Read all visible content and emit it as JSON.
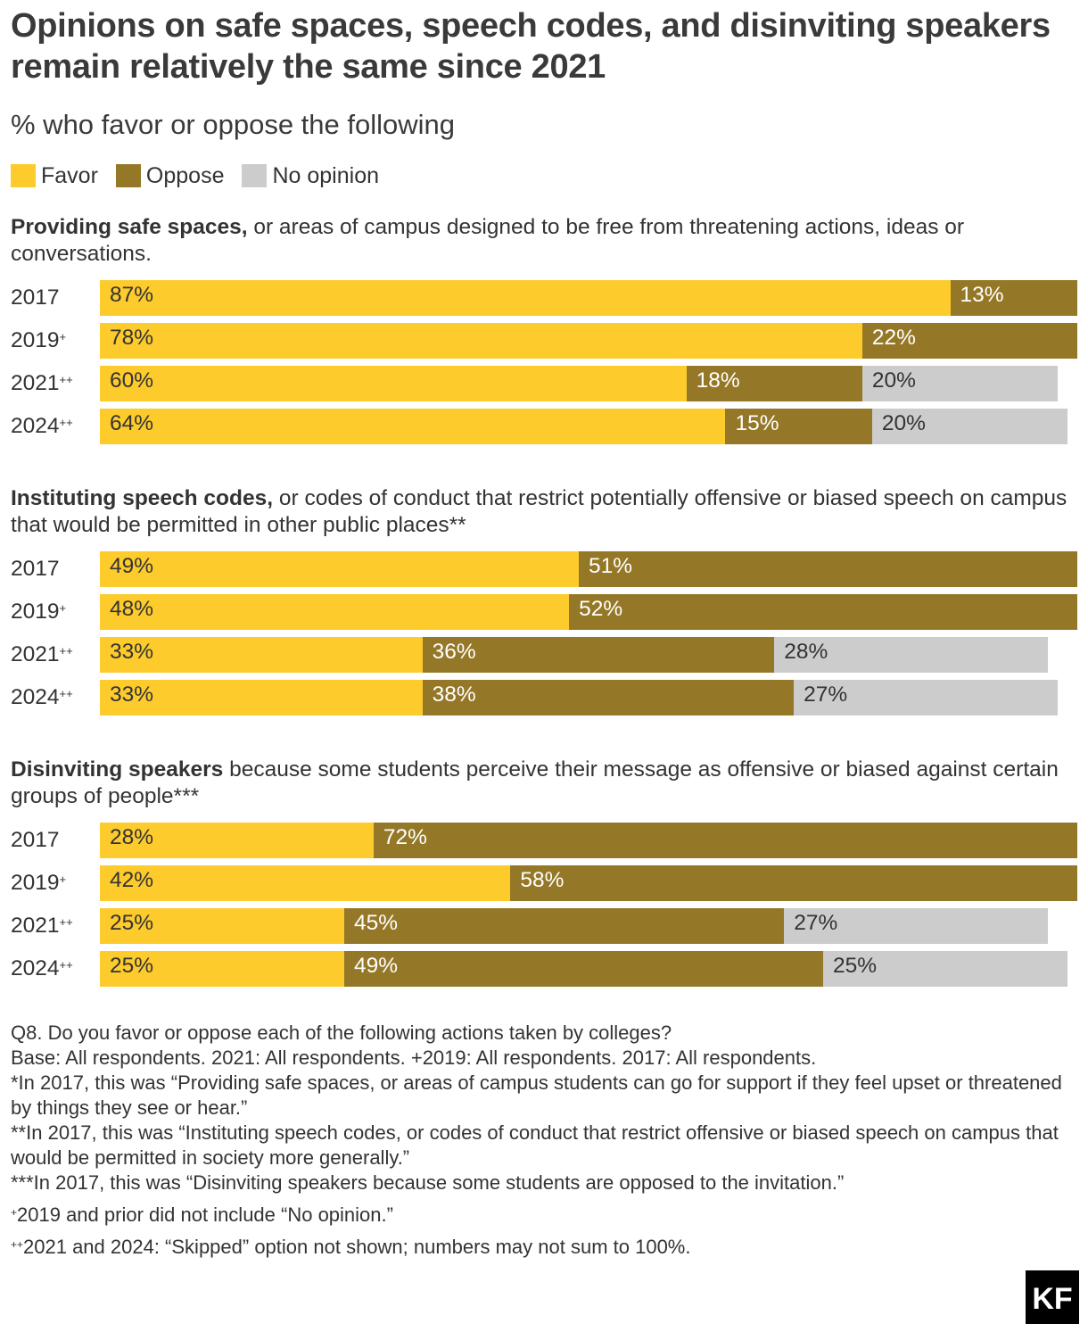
{
  "title": "Opinions on safe spaces, speech codes, and disinviting speakers remain relatively the same since 2021",
  "subtitle": "% who favor or oppose the following",
  "legend": [
    {
      "label": "Favor",
      "color": "#FDCB2C"
    },
    {
      "label": "Oppose",
      "color": "#957827"
    },
    {
      "label": "No opinion",
      "color": "#CCCCCC"
    }
  ],
  "chart_data": [
    {
      "type": "bar",
      "orientation": "horizontal",
      "stacked": true,
      "question_bold": "Providing safe spaces,",
      "question_rest": " or areas of campus designed to be free from threatening actions, ideas or conversations.",
      "categories": [
        "2017",
        "2019",
        "2021",
        "2024"
      ],
      "category_marks": [
        "",
        "+",
        "++",
        "++"
      ],
      "series": [
        {
          "name": "Favor",
          "values": [
            87,
            78,
            60,
            64
          ]
        },
        {
          "name": "Oppose",
          "values": [
            13,
            22,
            18,
            15
          ]
        },
        {
          "name": "No opinion",
          "values": [
            null,
            null,
            20,
            20
          ]
        }
      ],
      "xlim": [
        0,
        100
      ]
    },
    {
      "type": "bar",
      "orientation": "horizontal",
      "stacked": true,
      "question_bold": "Instituting speech codes,",
      "question_rest": " or codes of conduct that restrict potentially offensive or biased speech on campus that would be permitted in other public places**",
      "categories": [
        "2017",
        "2019",
        "2021",
        "2024"
      ],
      "category_marks": [
        "",
        "+",
        "++",
        "++"
      ],
      "series": [
        {
          "name": "Favor",
          "values": [
            49,
            48,
            33,
            33
          ]
        },
        {
          "name": "Oppose",
          "values": [
            51,
            52,
            36,
            38
          ]
        },
        {
          "name": "No opinion",
          "values": [
            null,
            null,
            28,
            27
          ]
        }
      ],
      "xlim": [
        0,
        100
      ]
    },
    {
      "type": "bar",
      "orientation": "horizontal",
      "stacked": true,
      "question_bold": "Disinviting speakers",
      "question_rest": " because some students perceive their message as offensive or biased against certain groups of people***",
      "categories": [
        "2017",
        "2019",
        "2021",
        "2024"
      ],
      "category_marks": [
        "",
        "+",
        "++",
        "++"
      ],
      "series": [
        {
          "name": "Favor",
          "values": [
            28,
            42,
            25,
            25
          ]
        },
        {
          "name": "Oppose",
          "values": [
            72,
            58,
            45,
            49
          ]
        },
        {
          "name": "No opinion",
          "values": [
            null,
            null,
            27,
            25
          ]
        }
      ],
      "xlim": [
        0,
        100
      ]
    }
  ],
  "notes": {
    "q8": "Q8. Do you favor or oppose each of the following actions taken by colleges?",
    "base": "Base: All respondents. 2021: All respondents. +2019: All respondents. 2017: All respondents.",
    "note1": "*In 2017, this was “Providing safe spaces, or areas of campus students can go for support if they feel upset or threatened by things they see or hear.”",
    "note2": "**In 2017, this was “Instituting speech codes, or codes of conduct that restrict offensive or biased speech on campus that would be permitted in society more generally.”",
    "note3": "***In 2017, this was “Disinviting speakers because some students are opposed to the invitation.”",
    "note4_mark": "+",
    "note4": "2019 and prior did not include “No opinion.”",
    "note5_mark": "++",
    "note5": "2021 and 2024: “Skipped” option not shown; numbers may not sum to 100%."
  },
  "logo_text": "KF"
}
